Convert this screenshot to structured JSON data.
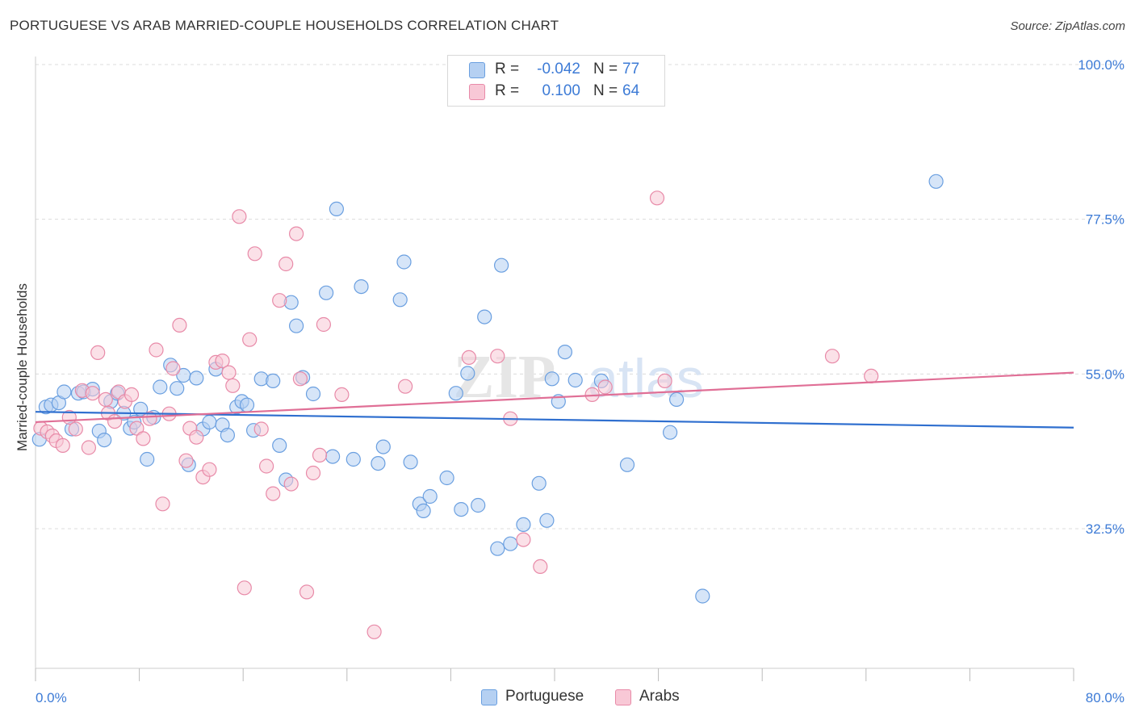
{
  "title": "PORTUGUESE VS ARAB MARRIED-COUPLE HOUSEHOLDS CORRELATION CHART",
  "source": "Source: ZipAtlas.com",
  "watermark": {
    "zip": "ZIP",
    "atlas": "atlas"
  },
  "legend": {
    "rows": [
      {
        "r_label": "R =",
        "r_value": "-0.042",
        "n_label": "N =",
        "n_value": "77",
        "color": "#a8c8f0"
      },
      {
        "r_label": "R =",
        "r_value": "0.100",
        "n_label": "N =",
        "n_value": "64",
        "color": "#f6b6c8"
      }
    ]
  },
  "bottom_legend": [
    {
      "label": "Portuguese",
      "color": "#a8c8f0"
    },
    {
      "label": "Arabs",
      "color": "#f6b6c8"
    }
  ],
  "chart_data": {
    "type": "scatter",
    "title": "PORTUGUESE VS ARAB MARRIED-COUPLE HOUSEHOLDS CORRELATION CHART",
    "xlabel": "",
    "ylabel": "Married-couple Households",
    "xlim": [
      0,
      80
    ],
    "ylim": [
      10,
      102
    ],
    "x_tick_labels": [
      "0.0%",
      "80.0%"
    ],
    "y_ticks": [
      32.5,
      55.0,
      77.5,
      100.0
    ],
    "y_tick_labels": [
      "32.5%",
      "55.0%",
      "77.5%",
      "100.0%"
    ],
    "grid": true,
    "series": [
      {
        "name": "Portuguese",
        "color": "#6a9fe0",
        "fill": "#b5d0f2",
        "trend": {
          "x": [
            0,
            80
          ],
          "y": [
            49.5,
            47.2
          ],
          "color": "#2f6fcf"
        },
        "points": [
          [
            0.3,
            45.5
          ],
          [
            0.8,
            50.2
          ],
          [
            1.2,
            50.5
          ],
          [
            1.8,
            50.8
          ],
          [
            2.2,
            52.4
          ],
          [
            2.8,
            47.0
          ],
          [
            3.3,
            52.2
          ],
          [
            3.7,
            52.4
          ],
          [
            4.4,
            52.8
          ],
          [
            4.9,
            46.7
          ],
          [
            5.3,
            45.4
          ],
          [
            5.8,
            51.0
          ],
          [
            6.3,
            52.2
          ],
          [
            6.8,
            49.3
          ],
          [
            7.3,
            47.1
          ],
          [
            7.6,
            48.0
          ],
          [
            8.1,
            49.9
          ],
          [
            8.6,
            42.6
          ],
          [
            9.1,
            48.7
          ],
          [
            9.6,
            53.1
          ],
          [
            10.4,
            56.3
          ],
          [
            10.9,
            52.9
          ],
          [
            11.4,
            54.8
          ],
          [
            11.8,
            41.8
          ],
          [
            12.4,
            54.4
          ],
          [
            12.9,
            47.0
          ],
          [
            13.4,
            48.0
          ],
          [
            13.9,
            55.7
          ],
          [
            14.4,
            47.6
          ],
          [
            14.8,
            46.1
          ],
          [
            15.5,
            50.2
          ],
          [
            15.9,
            51.0
          ],
          [
            16.3,
            50.5
          ],
          [
            16.8,
            46.8
          ],
          [
            17.4,
            54.3
          ],
          [
            18.3,
            54.0
          ],
          [
            18.8,
            44.6
          ],
          [
            19.3,
            39.6
          ],
          [
            19.7,
            65.4
          ],
          [
            20.1,
            62.0
          ],
          [
            20.6,
            54.5
          ],
          [
            21.4,
            52.1
          ],
          [
            22.4,
            66.8
          ],
          [
            22.9,
            43.0
          ],
          [
            23.2,
            79.0
          ],
          [
            24.5,
            42.6
          ],
          [
            25.1,
            67.7
          ],
          [
            26.4,
            42.0
          ],
          [
            26.8,
            44.4
          ],
          [
            28.1,
            65.8
          ],
          [
            28.4,
            71.3
          ],
          [
            28.9,
            42.2
          ],
          [
            29.6,
            36.1
          ],
          [
            29.9,
            35.1
          ],
          [
            30.4,
            37.2
          ],
          [
            31.7,
            39.9
          ],
          [
            32.4,
            52.2
          ],
          [
            32.8,
            35.3
          ],
          [
            33.3,
            55.1
          ],
          [
            34.1,
            35.9
          ],
          [
            34.6,
            63.3
          ],
          [
            35.6,
            29.6
          ],
          [
            35.9,
            70.8
          ],
          [
            36.6,
            30.3
          ],
          [
            37.6,
            33.1
          ],
          [
            38.8,
            39.1
          ],
          [
            39.4,
            33.7
          ],
          [
            39.8,
            54.3
          ],
          [
            40.3,
            51.0
          ],
          [
            40.8,
            58.2
          ],
          [
            41.6,
            54.1
          ],
          [
            43.6,
            54.0
          ],
          [
            45.6,
            41.8
          ],
          [
            48.9,
            46.5
          ],
          [
            49.4,
            51.3
          ],
          [
            51.4,
            22.7
          ],
          [
            69.4,
            83.0
          ]
        ]
      },
      {
        "name": "Arabs",
        "color": "#e88aa8",
        "fill": "#f8c8d6",
        "trend": {
          "x": [
            0,
            80
          ],
          "y": [
            48.0,
            55.2
          ],
          "color": "#e06f96"
        },
        "points": [
          [
            0.4,
            47.1
          ],
          [
            0.9,
            46.6
          ],
          [
            1.3,
            46.0
          ],
          [
            1.6,
            45.3
          ],
          [
            2.1,
            44.6
          ],
          [
            2.6,
            48.7
          ],
          [
            3.1,
            47.0
          ],
          [
            3.6,
            52.6
          ],
          [
            4.1,
            44.3
          ],
          [
            4.4,
            52.2
          ],
          [
            4.8,
            58.1
          ],
          [
            5.4,
            51.3
          ],
          [
            5.6,
            49.3
          ],
          [
            6.1,
            48.1
          ],
          [
            6.4,
            52.4
          ],
          [
            6.9,
            51.0
          ],
          [
            7.4,
            52.0
          ],
          [
            7.8,
            47.1
          ],
          [
            8.3,
            45.6
          ],
          [
            8.8,
            48.5
          ],
          [
            9.3,
            58.5
          ],
          [
            9.8,
            36.1
          ],
          [
            10.3,
            49.2
          ],
          [
            10.6,
            55.8
          ],
          [
            11.1,
            62.1
          ],
          [
            11.6,
            42.4
          ],
          [
            11.9,
            47.1
          ],
          [
            12.4,
            45.8
          ],
          [
            12.9,
            40.0
          ],
          [
            13.4,
            41.1
          ],
          [
            13.9,
            56.7
          ],
          [
            14.4,
            56.9
          ],
          [
            14.9,
            55.2
          ],
          [
            15.2,
            53.3
          ],
          [
            15.7,
            77.9
          ],
          [
            16.1,
            23.9
          ],
          [
            16.5,
            60.0
          ],
          [
            16.9,
            72.5
          ],
          [
            17.4,
            47.0
          ],
          [
            17.8,
            41.6
          ],
          [
            18.3,
            37.6
          ],
          [
            18.8,
            65.7
          ],
          [
            19.3,
            71.0
          ],
          [
            19.7,
            39.0
          ],
          [
            20.1,
            75.4
          ],
          [
            20.4,
            54.3
          ],
          [
            20.9,
            23.3
          ],
          [
            21.4,
            40.6
          ],
          [
            21.9,
            43.2
          ],
          [
            22.2,
            62.2
          ],
          [
            23.6,
            52.0
          ],
          [
            26.1,
            17.5
          ],
          [
            28.5,
            53.2
          ],
          [
            33.4,
            57.4
          ],
          [
            35.6,
            57.6
          ],
          [
            36.6,
            48.5
          ],
          [
            37.6,
            30.9
          ],
          [
            38.9,
            27.0
          ],
          [
            42.9,
            52.0
          ],
          [
            43.9,
            53.1
          ],
          [
            47.9,
            80.6
          ],
          [
            48.5,
            54.0
          ],
          [
            61.4,
            57.6
          ],
          [
            64.4,
            54.7
          ]
        ]
      }
    ]
  }
}
